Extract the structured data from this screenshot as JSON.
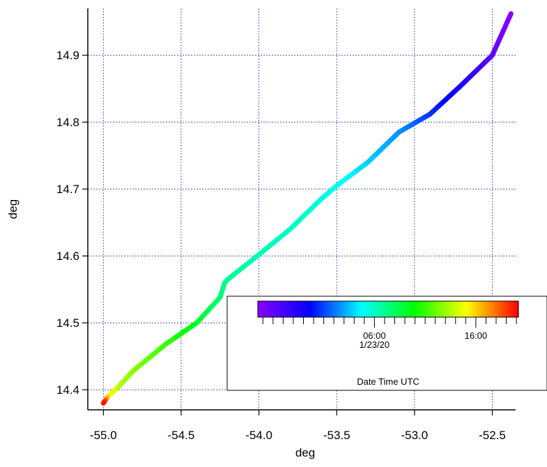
{
  "chart_data": {
    "type": "scatter",
    "title": "",
    "xlabel": "deg",
    "ylabel": "deg",
    "xlim": [
      -55.1,
      -52.35
    ],
    "ylim": [
      14.37,
      14.97
    ],
    "xticks": [
      -55.0,
      -54.5,
      -54.0,
      -53.5,
      -53.0,
      -52.5
    ],
    "xtick_labels": [
      "-55.0",
      "-54.5",
      "-54.0",
      "-53.5",
      "-53.0",
      "-52.5"
    ],
    "yticks": [
      14.4,
      14.5,
      14.6,
      14.7,
      14.8,
      14.9
    ],
    "ytick_labels": [
      "14.4",
      "14.5",
      "14.6",
      "14.7",
      "14.8",
      "14.9"
    ],
    "grid": true,
    "track": {
      "x": [
        -52.38,
        -52.5,
        -52.7,
        -52.9,
        -53.1,
        -53.3,
        -53.5,
        -53.6,
        -53.8,
        -54.0,
        -54.2,
        -54.22,
        -54.25,
        -54.4,
        -54.6,
        -54.8,
        -54.85,
        -54.9,
        -54.97,
        -55.0
      ],
      "y": [
        14.962,
        14.9,
        14.855,
        14.812,
        14.785,
        14.74,
        14.705,
        14.685,
        14.64,
        14.602,
        14.565,
        14.56,
        14.538,
        14.5,
        14.468,
        14.43,
        14.418,
        14.405,
        14.39,
        14.38
      ],
      "color_value_hours": [
        -5.5,
        -4.0,
        -1.5,
        0.5,
        2.5,
        3.8,
        5.0,
        5.5,
        6.0,
        6.3,
        6.8,
        7.0,
        7.5,
        9.0,
        11.0,
        12.5,
        13.0,
        13.5,
        15.0,
        20.0
      ]
    },
    "colorbar": {
      "label": "Date Time UTC",
      "colors": [
        "#8a00ff",
        "#0000ff",
        "#00ffff",
        "#00ff00",
        "#ffff00",
        "#ff0000"
      ],
      "range_hours": [
        -5.5,
        20.2
      ],
      "tick_hours": [
        -5,
        -4,
        -3,
        -2,
        -1,
        0,
        1,
        2,
        3,
        4,
        5,
        6,
        7,
        8,
        9,
        10,
        11,
        12,
        13,
        14,
        15,
        16,
        17,
        18,
        19,
        20
      ],
      "labels": [
        {
          "hour": 6,
          "text": "06:00",
          "subtext": "1/23/20"
        },
        {
          "hour": 16,
          "text": "16:00",
          "subtext": ""
        }
      ]
    }
  }
}
